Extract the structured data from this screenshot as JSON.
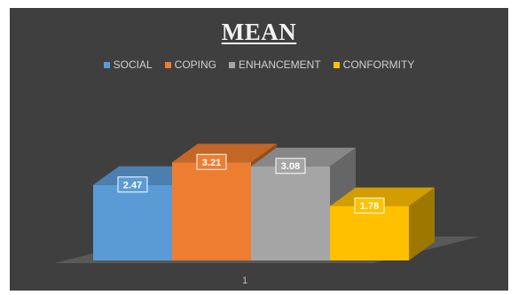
{
  "chart_data": {
    "type": "bar",
    "style": "3d-clustered-column",
    "title": "MEAN",
    "categories": [
      "1"
    ],
    "series": [
      {
        "name": "SOCIAL",
        "values": [
          2.47
        ],
        "color": "#5b9bd5"
      },
      {
        "name": "COPING",
        "values": [
          3.21
        ],
        "color": "#ed7d31"
      },
      {
        "name": "ENHANCEMENT",
        "values": [
          3.08
        ],
        "color": "#a5a5a5"
      },
      {
        "name": "CONFORMITY",
        "values": [
          1.78
        ],
        "color": "#ffc000"
      }
    ],
    "data_labels": [
      "2.47",
      "3.21",
      "3.08",
      "1.78"
    ],
    "legend_position": "top",
    "grid": false,
    "background_color": "#3f3f3f",
    "xlabel": "",
    "ylabel": ""
  }
}
